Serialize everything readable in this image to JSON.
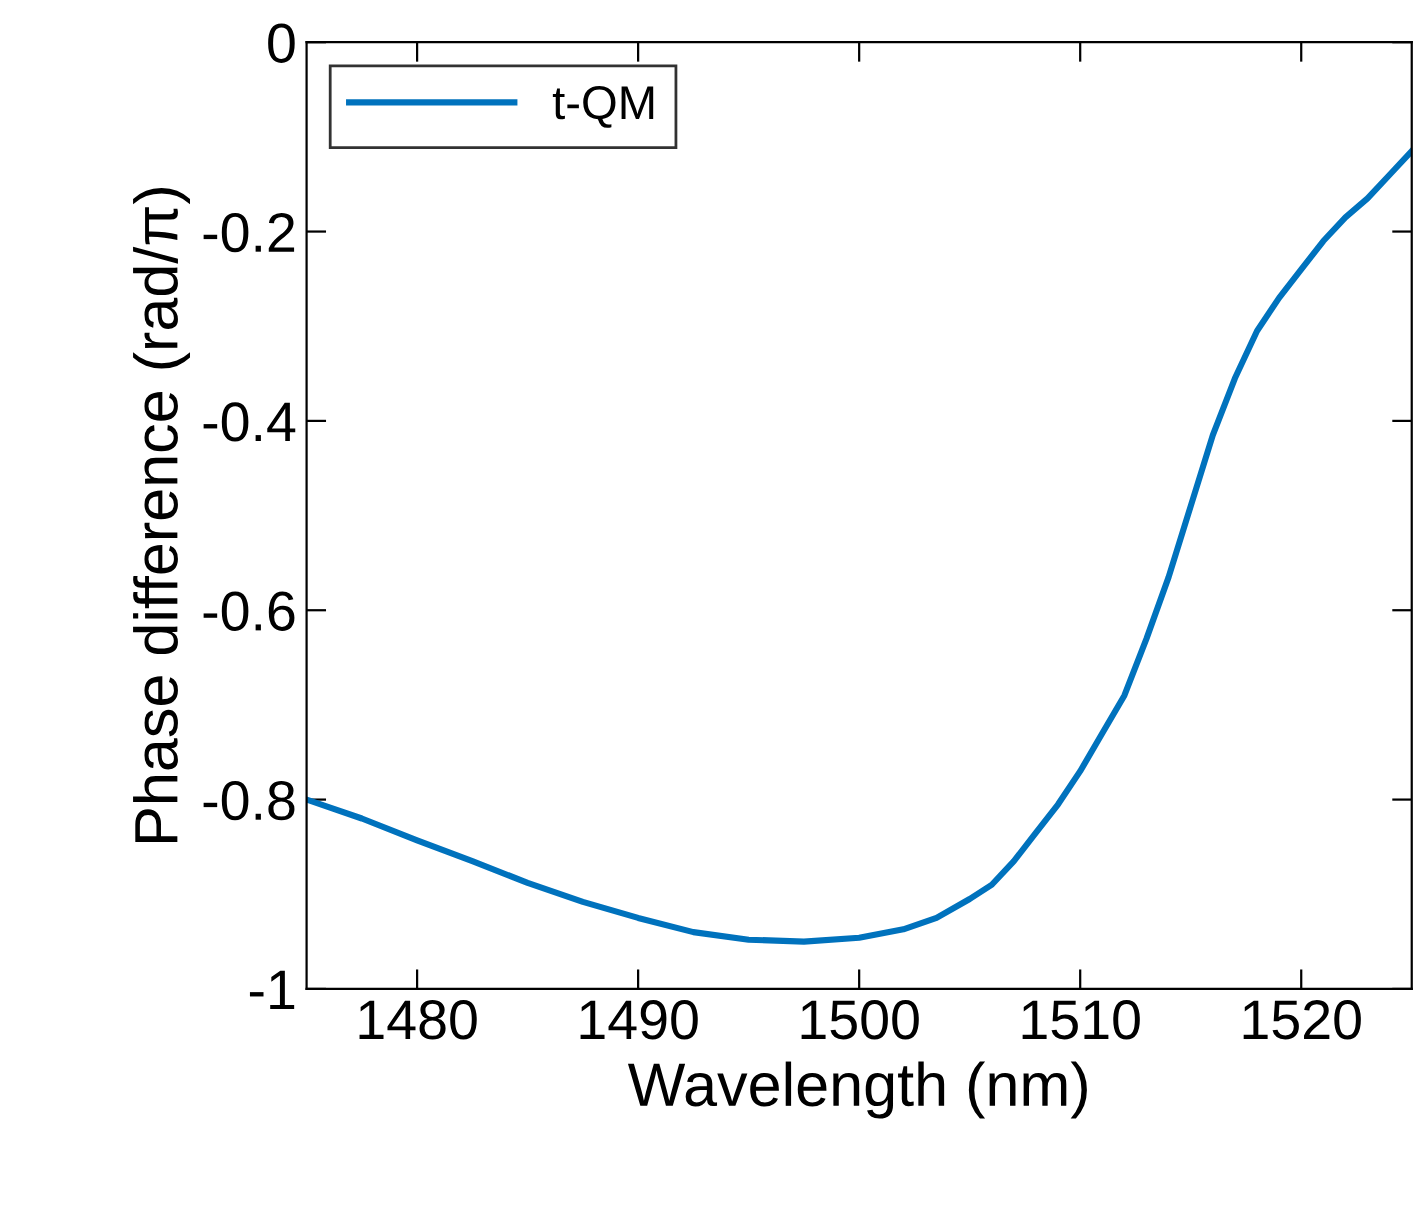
{
  "chart_data": {
    "type": "line",
    "xlabel": "Wavelength (nm)",
    "ylabel": "Phase difference (rad/π)",
    "legend": "top left",
    "grid": false,
    "series": [
      {
        "name": "t-QM",
        "color": "#0072bd",
        "x": [
          1475,
          1477.5,
          1480,
          1482.5,
          1485,
          1487.5,
          1490,
          1492.5,
          1495,
          1497.5,
          1500,
          1502,
          1503.5,
          1505,
          1506,
          1507,
          1508,
          1509,
          1510,
          1511,
          1512,
          1513,
          1514,
          1515,
          1516,
          1517,
          1518,
          1519,
          1520,
          1521,
          1522,
          1523,
          1524,
          1525
        ],
        "values": [
          -0.8,
          -0.82,
          -0.843,
          -0.865,
          -0.888,
          -0.908,
          -0.925,
          -0.94,
          -0.948,
          -0.95,
          -0.946,
          -0.937,
          -0.925,
          -0.905,
          -0.89,
          -0.865,
          -0.835,
          -0.805,
          -0.77,
          -0.73,
          -0.69,
          -0.63,
          -0.565,
          -0.49,
          -0.415,
          -0.355,
          -0.305,
          -0.27,
          -0.24,
          -0.21,
          -0.185,
          -0.165,
          -0.14,
          -0.115
        ]
      }
    ],
    "xlim": [
      1475,
      1525
    ],
    "xticks": [
      1480,
      1490,
      1500,
      1510,
      1520
    ],
    "ylim": [
      -1,
      0
    ],
    "yticks": [
      -1,
      -0.8,
      -0.6,
      -0.4,
      -0.2,
      0
    ]
  }
}
